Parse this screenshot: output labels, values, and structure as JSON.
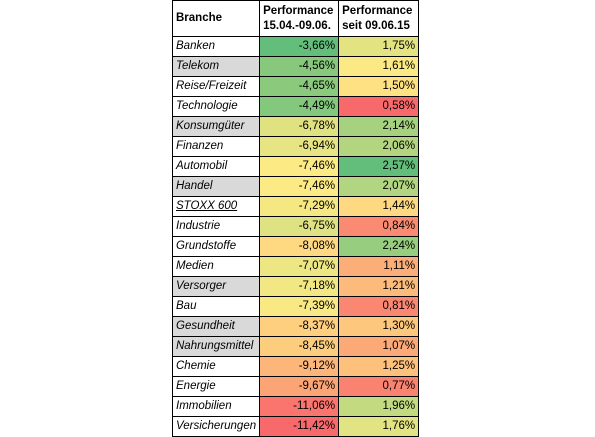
{
  "table": {
    "headers": {
      "branche": "Branche",
      "p1_line1": "Performance",
      "p1_line2": "15.04.-09.06.",
      "p2_line1": "Performance",
      "p2_line2": "seit 09.06.15"
    },
    "colors": {
      "green": "#63be7b",
      "yellow": "#ffeb84",
      "red": "#f8696b",
      "shaded_name": "#d9d9d9"
    }
  },
  "chart_data": {
    "type": "table",
    "columns": [
      "Branche",
      "Performance 15.04.-09.06.",
      "Performance seit 09.06.15"
    ],
    "rows": [
      {
        "branche": "Banken",
        "p1": "-3,66%",
        "p2": "1,75%",
        "p1v": -3.66,
        "p2v": 1.75,
        "shaded": false,
        "underline": false
      },
      {
        "branche": "Telekom",
        "p1": "-4,56%",
        "p2": "1,61%",
        "p1v": -4.56,
        "p2v": 1.61,
        "shaded": true,
        "underline": false
      },
      {
        "branche": "Reise/Freizeit",
        "p1": "-4,65%",
        "p2": "1,50%",
        "p1v": -4.65,
        "p2v": 1.5,
        "shaded": false,
        "underline": false
      },
      {
        "branche": "Technologie",
        "p1": "-4,49%",
        "p2": "0,58%",
        "p1v": -4.49,
        "p2v": 0.58,
        "shaded": false,
        "underline": false
      },
      {
        "branche": "Konsumgüter",
        "p1": "-6,78%",
        "p2": "2,14%",
        "p1v": -6.78,
        "p2v": 2.14,
        "shaded": true,
        "underline": false
      },
      {
        "branche": "Finanzen",
        "p1": "-6,94%",
        "p2": "2,06%",
        "p1v": -6.94,
        "p2v": 2.06,
        "shaded": false,
        "underline": false
      },
      {
        "branche": "Automobil",
        "p1": "-7,46%",
        "p2": "2,57%",
        "p1v": -7.46,
        "p2v": 2.57,
        "shaded": false,
        "underline": false
      },
      {
        "branche": "Handel",
        "p1": "-7,46%",
        "p2": "2,07%",
        "p1v": -7.46,
        "p2v": 2.07,
        "shaded": true,
        "underline": false
      },
      {
        "branche": "STOXX 600",
        "p1": "-7,29%",
        "p2": "1,44%",
        "p1v": -7.29,
        "p2v": 1.44,
        "shaded": false,
        "underline": true
      },
      {
        "branche": "Industrie",
        "p1": "-6,75%",
        "p2": "0,84%",
        "p1v": -6.75,
        "p2v": 0.84,
        "shaded": false,
        "underline": false
      },
      {
        "branche": "Grundstoffe",
        "p1": "-8,08%",
        "p2": "2,24%",
        "p1v": -8.08,
        "p2v": 2.24,
        "shaded": false,
        "underline": false
      },
      {
        "branche": "Medien",
        "p1": "-7,07%",
        "p2": "1,11%",
        "p1v": -7.07,
        "p2v": 1.11,
        "shaded": false,
        "underline": false
      },
      {
        "branche": "Versorger",
        "p1": "-7,18%",
        "p2": "1,21%",
        "p1v": -7.18,
        "p2v": 1.21,
        "shaded": true,
        "underline": false
      },
      {
        "branche": "Bau",
        "p1": "-7,39%",
        "p2": "0,81%",
        "p1v": -7.39,
        "p2v": 0.81,
        "shaded": false,
        "underline": false
      },
      {
        "branche": "Gesundheit",
        "p1": "-8,37%",
        "p2": "1,30%",
        "p1v": -8.37,
        "p2v": 1.3,
        "shaded": true,
        "underline": false
      },
      {
        "branche": "Nahrungsmittel",
        "p1": "-8,45%",
        "p2": "1,07%",
        "p1v": -8.45,
        "p2v": 1.07,
        "shaded": true,
        "underline": false
      },
      {
        "branche": "Chemie",
        "p1": "-9,12%",
        "p2": "1,25%",
        "p1v": -9.12,
        "p2v": 1.25,
        "shaded": false,
        "underline": false
      },
      {
        "branche": "Energie",
        "p1": "-9,67%",
        "p2": "0,77%",
        "p1v": -9.67,
        "p2v": 0.77,
        "shaded": false,
        "underline": false
      },
      {
        "branche": "Immobilien",
        "p1": "-11,06%",
        "p2": "1,96%",
        "p1v": -11.06,
        "p2v": 1.96,
        "shaded": false,
        "underline": false
      },
      {
        "branche": "Versicherungen",
        "p1": "-11,42%",
        "p2": "1,76%",
        "p1v": -11.42,
        "p2v": 1.76,
        "shaded": false,
        "underline": false
      }
    ]
  }
}
